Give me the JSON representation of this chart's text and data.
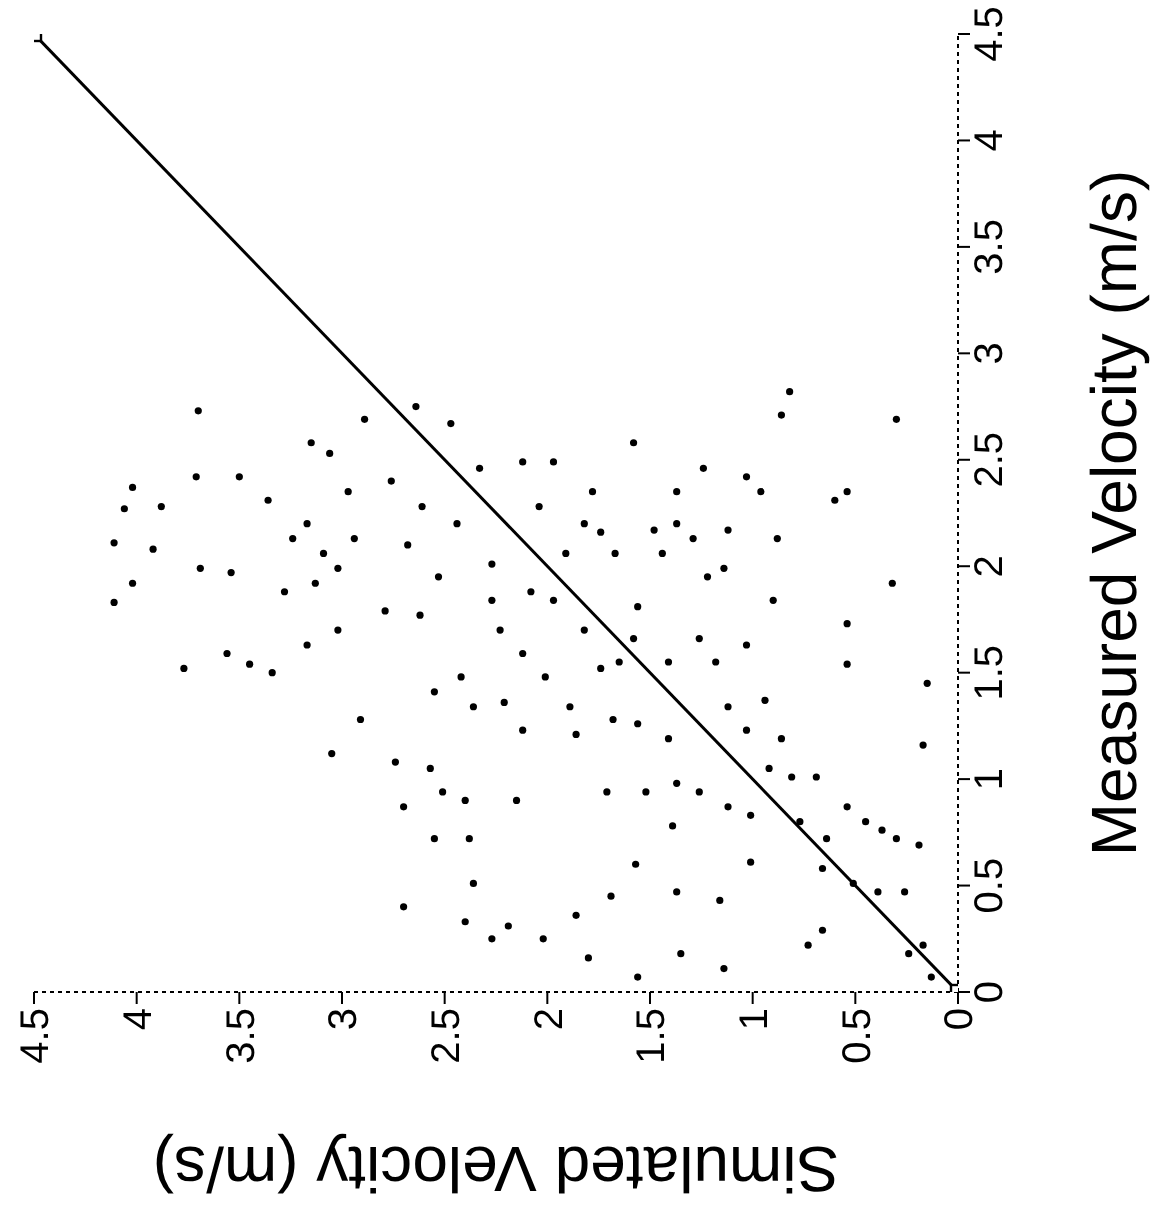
{
  "chart_data": {
    "type": "scatter",
    "xlabel": "Simulated Velocity (m/s)",
    "ylabel": "Measured Velocity (m/s)",
    "xlim": [
      4.5,
      0
    ],
    "ylim": [
      0,
      4.5
    ],
    "xticks": [
      0,
      0.5,
      1,
      1.5,
      2,
      2.5,
      3,
      3.5,
      4,
      4.5
    ],
    "yticks": [
      0,
      0.5,
      1,
      1.5,
      2,
      2.5,
      3,
      3.5,
      4,
      4.5
    ],
    "marker": "circle",
    "series": [
      {
        "type": "scatter",
        "color": "#000000",
        "values": [
          1.83,
          1.92,
          2.11,
          2.08,
          2.37,
          2.28,
          2.27,
          2.73,
          2.42,
          1.99,
          1.52,
          1.59,
          1.5,
          1.54,
          1.97,
          2.42,
          2.58,
          2.31,
          2.13,
          2.2,
          2.06,
          1.99,
          1.88,
          1.92,
          2.13,
          2.53,
          2.35,
          1.7,
          1.63,
          1.28,
          1.12,
          1.79,
          2.69,
          2.4,
          2.75,
          2.1,
          2.28,
          1.77,
          1.95,
          2.67,
          2.2,
          1.41,
          1.48,
          1.34,
          1.08,
          0.87,
          1.05,
          0.94,
          0.9,
          0.72,
          0.72,
          0.4,
          0.51,
          0.33,
          0.25,
          0.31,
          0.25,
          0.9,
          2.01,
          2.46,
          2.49,
          2.28,
          2.49,
          2.06,
          1.88,
          1.7,
          1.59,
          1.48,
          1.36,
          1.23,
          1.34,
          1.21,
          2.2,
          2.35,
          2.16,
          2.06,
          2.58,
          2.17,
          2.35,
          2.13,
          1.81,
          1.7,
          1.52,
          1.55,
          1.66,
          1.55,
          1.66,
          1.55,
          1.28,
          1.26,
          1.19,
          0.94,
          0.94,
          0.98,
          0.94,
          0.78,
          0.6,
          0.45,
          0.36,
          0.16,
          0.07,
          0.47,
          0.18,
          0.43,
          0.11,
          0.87,
          0.83,
          0.61,
          1.34,
          1.23,
          1.37,
          1.05,
          1.19,
          1.01,
          0.8,
          1.01,
          0.72,
          0.87,
          0.8,
          0.76,
          0.72,
          0.51,
          0.47,
          0.47,
          0.69,
          1.16,
          1.45,
          1.92,
          1.73,
          1.54,
          2.31,
          2.35,
          2.69,
          2.82,
          2.71,
          2.13,
          1.84,
          1.63,
          1.99,
          1.95,
          2.46,
          2.17,
          2.42,
          2.35,
          0.58,
          0.22,
          0.29,
          0.22,
          0.18,
          0.07,
          2.2,
          2.06,
          1.84,
          1.84
        ],
        "x": [
          4.11,
          4.02,
          4.11,
          3.92,
          4.02,
          3.88,
          4.06,
          3.7,
          3.71,
          3.69,
          3.77,
          3.56,
          3.34,
          3.45,
          3.54,
          3.5,
          3.15,
          3.36,
          3.24,
          3.17,
          3.09,
          3.02,
          3.28,
          3.13,
          2.94,
          3.06,
          2.97,
          3.02,
          3.17,
          2.91,
          3.05,
          2.79,
          2.89,
          2.76,
          2.64,
          2.68,
          2.61,
          2.62,
          2.53,
          2.47,
          2.44,
          2.55,
          2.42,
          2.36,
          2.74,
          2.7,
          2.57,
          2.51,
          2.4,
          2.55,
          2.38,
          2.7,
          2.36,
          2.4,
          2.27,
          2.19,
          2.02,
          2.15,
          2.27,
          2.33,
          2.12,
          2.04,
          1.97,
          1.91,
          2.08,
          2.23,
          2.12,
          2.01,
          2.21,
          2.12,
          1.89,
          1.86,
          1.82,
          1.78,
          1.74,
          1.67,
          1.58,
          1.48,
          1.37,
          1.29,
          1.56,
          1.82,
          1.74,
          1.65,
          1.58,
          1.41,
          1.26,
          1.18,
          1.68,
          1.56,
          1.41,
          1.71,
          1.52,
          1.37,
          1.26,
          1.39,
          1.57,
          1.69,
          1.86,
          1.8,
          1.56,
          1.37,
          1.35,
          1.16,
          1.14,
          1.12,
          1.01,
          1.01,
          1.12,
          1.03,
          0.94,
          0.92,
          0.86,
          0.81,
          0.77,
          0.69,
          0.64,
          0.54,
          0.45,
          0.37,
          0.3,
          0.51,
          0.39,
          0.26,
          0.19,
          0.17,
          0.15,
          0.32,
          0.54,
          0.54,
          0.6,
          0.54,
          0.3,
          0.82,
          0.86,
          0.88,
          0.9,
          1.03,
          1.14,
          1.22,
          1.24,
          1.12,
          1.03,
          0.96,
          0.66,
          0.73,
          0.66,
          0.17,
          0.24,
          0.13,
          1.37,
          1.44,
          2.27,
          1.97
        ]
      },
      {
        "type": "line",
        "color": "#000000",
        "marker": "square",
        "x": [
          0,
          4.5
        ],
        "values": [
          0,
          4.5
        ]
      }
    ]
  }
}
